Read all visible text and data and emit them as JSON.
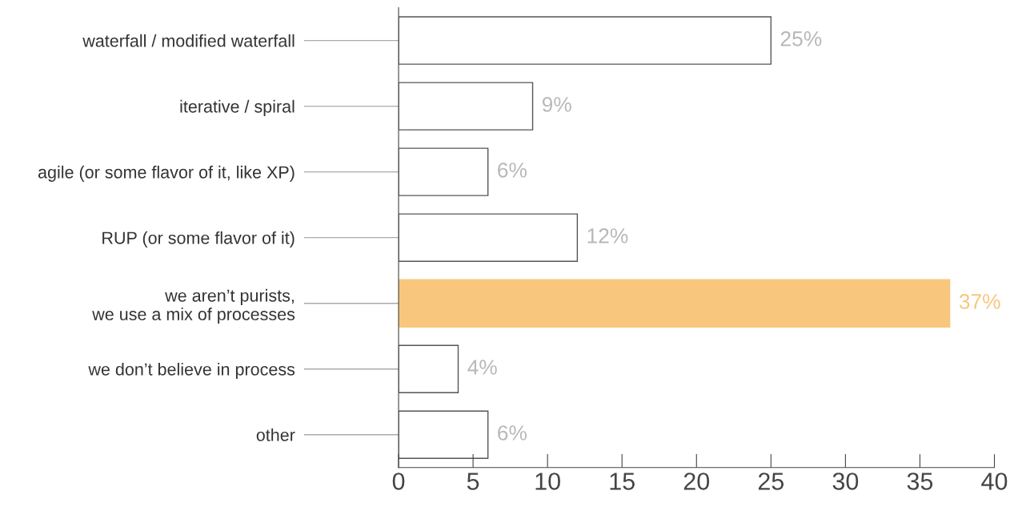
{
  "chart_data": {
    "type": "bar",
    "orientation": "horizontal",
    "categories": [
      "waterfall / modified waterfall",
      "iterative / spiral",
      "agile (or some flavor of it, like XP)",
      "RUP (or some flavor of it)",
      "we aren’t purists,\nwe use a mix of processes",
      "we don’t believe in process",
      "other"
    ],
    "values": [
      25,
      9,
      6,
      12,
      37,
      4,
      6
    ],
    "colors": [
      "#ffffff",
      "#ffffff",
      "#ffffff",
      "#ffffff",
      "#f8c67c",
      "#ffffff",
      "#ffffff"
    ],
    "value_labels": [
      "25%",
      "9%",
      "6%",
      "12%",
      "37%",
      "4%",
      "6%"
    ],
    "xlim": [
      0,
      40
    ],
    "xticks": [
      0,
      5,
      10,
      15,
      20,
      25,
      30,
      35,
      40
    ],
    "grid": false
  }
}
